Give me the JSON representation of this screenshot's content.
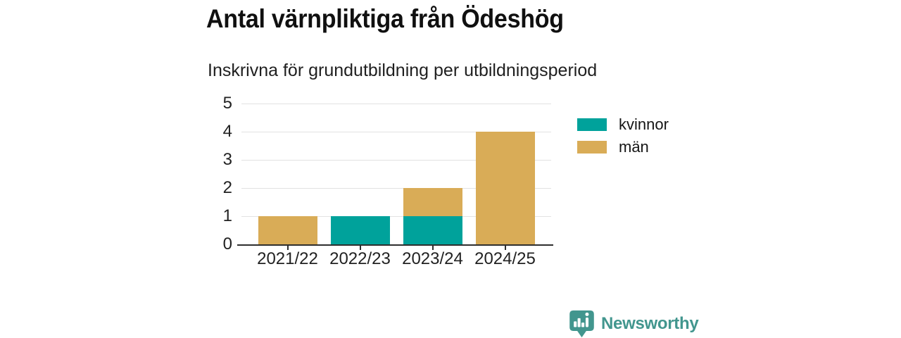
{
  "title": "Antal värnpliktiga från Ödeshög",
  "subtitle": "Inskrivna för grundutbildning per utbildningsperiod",
  "colors": {
    "kvinnor": "#00a29b",
    "man": "#d9ac57",
    "brand": "#42968e",
    "gridline": "#e2e2e2",
    "axis": "#2e2e2e",
    "text": "#222222"
  },
  "chart_data": {
    "type": "bar",
    "stacked": true,
    "categories": [
      "2021/22",
      "2022/23",
      "2023/24",
      "2024/25"
    ],
    "series": [
      {
        "name": "kvinnor",
        "color": "#00a29b",
        "values": [
          0,
          1,
          1,
          0
        ]
      },
      {
        "name": "män",
        "color": "#d9ac57",
        "values": [
          1,
          0,
          1,
          4
        ]
      }
    ],
    "title": "Antal värnpliktiga från Ödeshög",
    "subtitle": "Inskrivna för grundutbildning per utbildningsperiod",
    "xlabel": "",
    "ylabel": "",
    "ylim": [
      0,
      5
    ],
    "yticks": [
      0,
      1,
      2,
      3,
      4,
      5
    ],
    "grid": true,
    "legend_position": "right"
  },
  "legend": {
    "items": [
      {
        "label": "kvinnor",
        "color": "#00a29b"
      },
      {
        "label": "män",
        "color": "#d9ac57"
      }
    ]
  },
  "footer": {
    "brand_label": "Newsworthy",
    "brand_color": "#42968e",
    "logo_icon": "bar-chart-speech-bubble-icon"
  }
}
